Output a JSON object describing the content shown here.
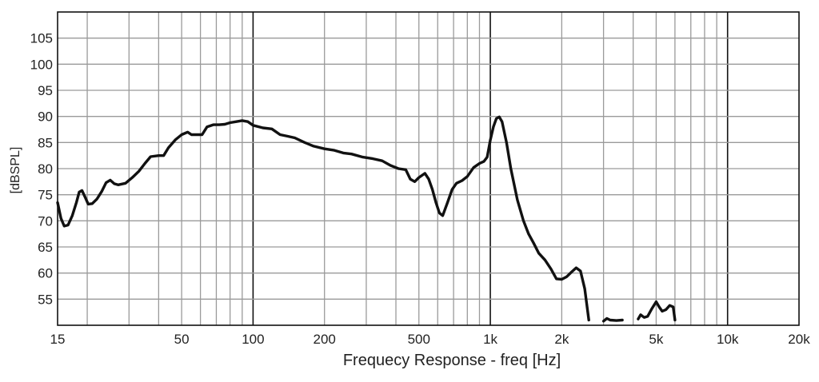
{
  "chart_data": {
    "type": "line",
    "title": "",
    "xlabel": "Frequecy Response - freq [Hz]",
    "ylabel": "[dBSPL]",
    "x_scale": "log",
    "xlim": [
      15,
      20000
    ],
    "ylim": [
      50,
      110
    ],
    "grid": true,
    "legend": "none",
    "x_ticks": [
      {
        "value": 15,
        "label": "15"
      },
      {
        "value": 50,
        "label": "50"
      },
      {
        "value": 100,
        "label": "100"
      },
      {
        "value": 200,
        "label": "200"
      },
      {
        "value": 500,
        "label": "500"
      },
      {
        "value": 1000,
        "label": "1k"
      },
      {
        "value": 2000,
        "label": "2k"
      },
      {
        "value": 5000,
        "label": "5k"
      },
      {
        "value": 10000,
        "label": "10k"
      },
      {
        "value": 20000,
        "label": "20k"
      }
    ],
    "y_ticks": [
      {
        "value": 55,
        "label": "55"
      },
      {
        "value": 60,
        "label": "60"
      },
      {
        "value": 65,
        "label": "65"
      },
      {
        "value": 70,
        "label": "70"
      },
      {
        "value": 75,
        "label": "75"
      },
      {
        "value": 80,
        "label": "80"
      },
      {
        "value": 85,
        "label": "85"
      },
      {
        "value": 90,
        "label": "90"
      },
      {
        "value": 95,
        "label": "95"
      },
      {
        "value": 100,
        "label": "100"
      },
      {
        "value": 105,
        "label": "105"
      }
    ],
    "colors": {
      "curve": "#111111",
      "decade_grid": "#111111",
      "minor_grid": "#9a9a9a",
      "frame": "#111111"
    },
    "series": [
      {
        "segments": [
          [
            [
              15,
              73.5
            ],
            [
              15.5,
              70.5
            ],
            [
              16,
              69
            ],
            [
              16.6,
              69.2
            ],
            [
              17.3,
              71
            ],
            [
              18,
              73.5
            ],
            [
              18.5,
              75.5
            ],
            [
              19,
              75.8
            ],
            [
              19.6,
              74.5
            ],
            [
              20.2,
              73.2
            ],
            [
              21,
              73.3
            ],
            [
              22,
              74.2
            ],
            [
              23,
              75.6
            ],
            [
              24,
              77.3
            ],
            [
              25,
              77.8
            ],
            [
              26,
              77.1
            ],
            [
              27,
              76.9
            ],
            [
              29,
              77.2
            ],
            [
              31,
              78.3
            ],
            [
              33,
              79.5
            ],
            [
              35,
              81
            ],
            [
              37,
              82.3
            ],
            [
              40,
              82.5
            ],
            [
              42,
              82.5
            ],
            [
              44,
              84
            ],
            [
              47,
              85.5
            ],
            [
              50,
              86.5
            ],
            [
              53,
              87
            ],
            [
              55,
              86.5
            ],
            [
              58,
              86.5
            ],
            [
              61,
              86.5
            ],
            [
              64,
              88
            ],
            [
              68,
              88.4
            ],
            [
              72,
              88.4
            ],
            [
              76,
              88.5
            ],
            [
              80,
              88.8
            ],
            [
              85,
              89
            ],
            [
              90,
              89.2
            ],
            [
              95,
              89
            ],
            [
              100,
              88.3
            ],
            [
              110,
              87.8
            ],
            [
              120,
              87.6
            ],
            [
              130,
              86.5
            ],
            [
              140,
              86.2
            ],
            [
              150,
              85.9
            ],
            [
              165,
              85
            ],
            [
              180,
              84.3
            ],
            [
              200,
              83.8
            ],
            [
              220,
              83.5
            ],
            [
              240,
              83
            ],
            [
              260,
              82.8
            ],
            [
              290,
              82.2
            ],
            [
              320,
              81.9
            ],
            [
              350,
              81.5
            ],
            [
              380,
              80.6
            ],
            [
              410,
              80
            ],
            [
              440,
              79.8
            ],
            [
              460,
              78
            ],
            [
              480,
              77.5
            ],
            [
              500,
              78.3
            ],
            [
              530,
              79.1
            ],
            [
              550,
              78
            ],
            [
              570,
              76
            ],
            [
              590,
              73.5
            ],
            [
              610,
              71.5
            ],
            [
              630,
              71
            ],
            [
              660,
              73.5
            ],
            [
              690,
              76
            ],
            [
              720,
              77.2
            ],
            [
              760,
              77.7
            ],
            [
              800,
              78.5
            ],
            [
              850,
              80.2
            ],
            [
              900,
              81
            ],
            [
              940,
              81.4
            ],
            [
              970,
              82.2
            ],
            [
              1000,
              85.5
            ],
            [
              1030,
              88
            ],
            [
              1060,
              89.6
            ],
            [
              1090,
              89.9
            ],
            [
              1120,
              89
            ],
            [
              1170,
              85
            ],
            [
              1220,
              80
            ],
            [
              1300,
              74
            ],
            [
              1380,
              70
            ],
            [
              1450,
              67.5
            ],
            [
              1520,
              65.8
            ],
            [
              1600,
              63.8
            ],
            [
              1700,
              62.5
            ],
            [
              1800,
              60.8
            ],
            [
              1900,
              58.9
            ],
            [
              2000,
              58.8
            ],
            [
              2100,
              59.3
            ],
            [
              2200,
              60.2
            ],
            [
              2300,
              61
            ],
            [
              2400,
              60.4
            ],
            [
              2500,
              57
            ],
            [
              2600,
              51
            ]
          ],
          [
            [
              3000,
              50.8
            ],
            [
              3100,
              51.3
            ],
            [
              3200,
              51
            ],
            [
              3400,
              50.9
            ],
            [
              3600,
              51
            ]
          ],
          [
            [
              4200,
              51.2
            ],
            [
              4300,
              52
            ],
            [
              4450,
              51.5
            ],
            [
              4600,
              51.7
            ],
            [
              4800,
              53.2
            ],
            [
              5000,
              54.5
            ],
            [
              5150,
              53.5
            ],
            [
              5300,
              52.7
            ],
            [
              5500,
              53
            ],
            [
              5700,
              53.8
            ],
            [
              5900,
              53.5
            ],
            [
              6000,
              51
            ]
          ]
        ]
      }
    ]
  }
}
